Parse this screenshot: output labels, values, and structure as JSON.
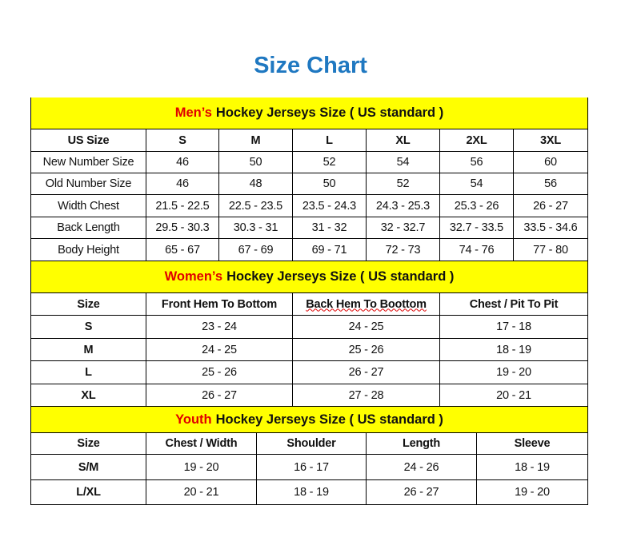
{
  "title": "Size Chart",
  "colors": {
    "title": "#1f78c1",
    "banner": "#ffff00",
    "accent_red": "#e00000"
  },
  "sections": [
    {
      "highlight": "Men’s",
      "heading": "Hockey Jerseys Size ( US standard )",
      "headers": [
        "US Size",
        "S",
        "M",
        "L",
        "XL",
        "2XL",
        "3XL"
      ],
      "rows": [
        [
          "New Number Size",
          "46",
          "50",
          "52",
          "54",
          "56",
          "60"
        ],
        [
          "Old Number Size",
          "46",
          "48",
          "50",
          "52",
          "54",
          "56"
        ],
        [
          "Width Chest",
          "21.5 - 22.5",
          "22.5 - 23.5",
          "23.5 - 24.3",
          "24.3 - 25.3",
          "25.3 - 26",
          "26 - 27"
        ],
        [
          "Back Length",
          "29.5 - 30.3",
          "30.3 - 31",
          "31 - 32",
          "32 - 32.7",
          "32.7 - 33.5",
          "33.5 - 34.6"
        ],
        [
          "Body Height",
          "65 - 67",
          "67 - 69",
          "69 - 71",
          "72 - 73",
          "74 - 76",
          "77 - 80"
        ]
      ]
    },
    {
      "highlight": "Women’s",
      "heading": "Hockey Jerseys Size ( US standard )",
      "headers": [
        "Size",
        "Front Hem To Bottom",
        "Back Hem To Boottom",
        "Chest / Pit To Pit"
      ],
      "rows": [
        [
          "S",
          "23 - 24",
          "24 - 25",
          "17 - 18"
        ],
        [
          "M",
          "24 - 25",
          "25 - 26",
          "18 - 19"
        ],
        [
          "L",
          "25 - 26",
          "26 - 27",
          "19 - 20"
        ],
        [
          "XL",
          "26 - 27",
          "27 - 28",
          "20 - 21"
        ]
      ]
    },
    {
      "highlight": "Youth",
      "heading": "Hockey Jerseys Size ( US standard )",
      "headers": [
        "Size",
        "Chest / Width",
        "Shoulder",
        "Length",
        "Sleeve"
      ],
      "rows": [
        [
          "S/M",
          "19 - 20",
          "16 - 17",
          "24 - 26",
          "18 - 19"
        ],
        [
          "L/XL",
          "20 - 21",
          "18 - 19",
          "26 - 27",
          "19 - 20"
        ]
      ]
    }
  ]
}
